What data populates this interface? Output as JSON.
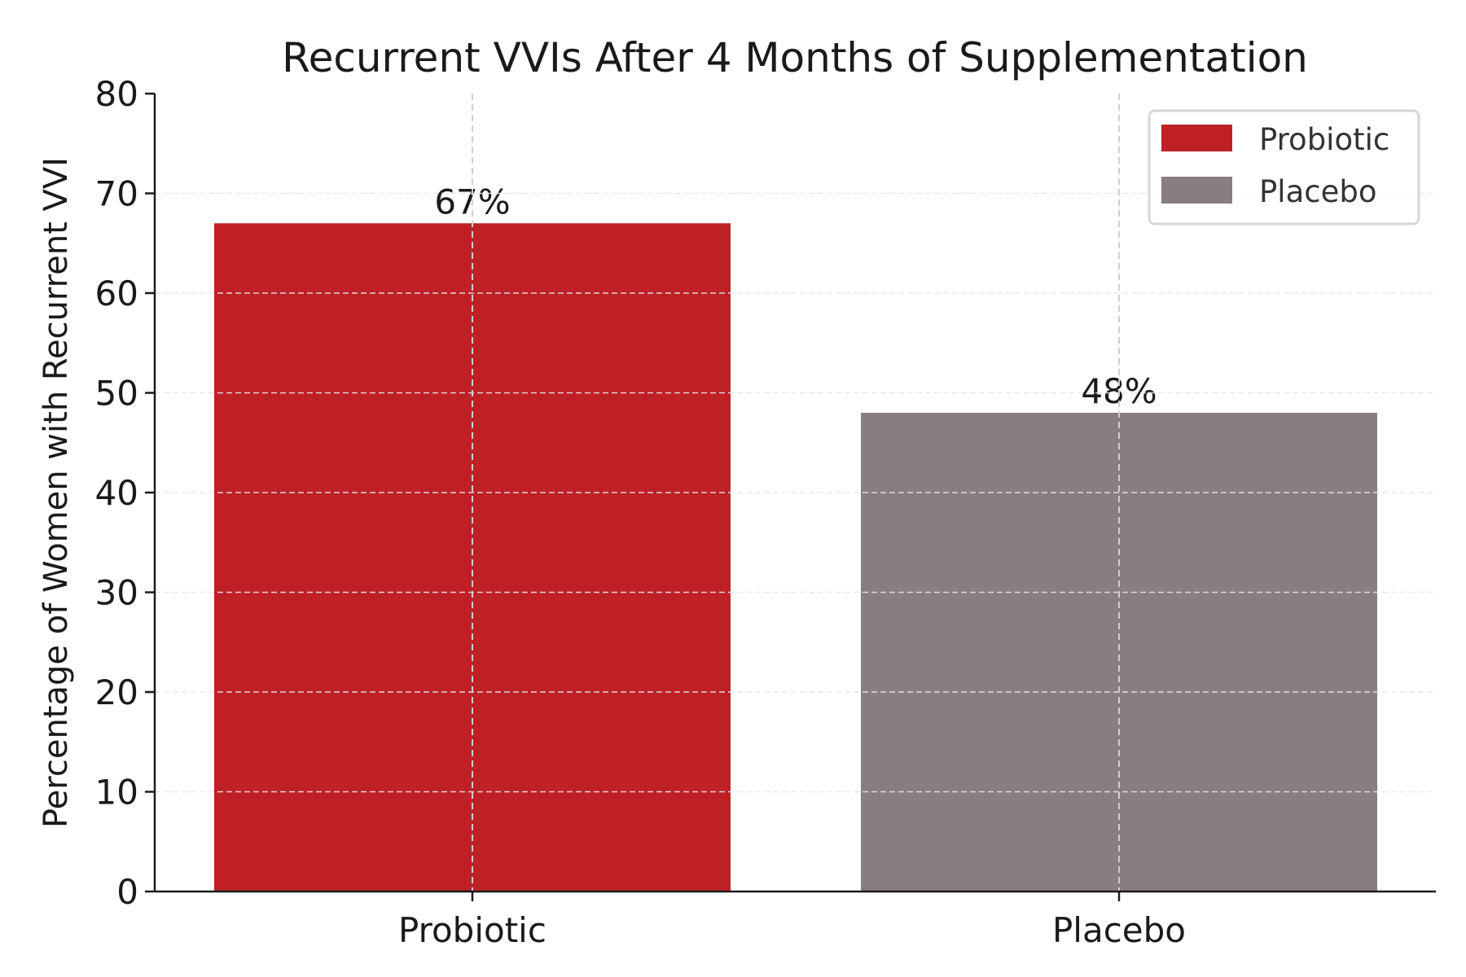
{
  "chart_data": {
    "type": "bar",
    "title": "Recurrent VVIs After 4 Months of Supplementation",
    "xlabel": "",
    "ylabel": "Percentage of Women with Recurrent VVI",
    "categories": [
      "Probiotic",
      "Placebo"
    ],
    "values": [
      67,
      48
    ],
    "data_labels": [
      "67%",
      "48%"
    ],
    "colors": [
      "#BE2026",
      "#897D80"
    ],
    "ylim": [
      0,
      80
    ],
    "yticks": [
      0,
      10,
      20,
      30,
      40,
      50,
      60,
      70,
      80
    ],
    "grid": true,
    "legend": {
      "placement": "top-right",
      "entries": [
        {
          "label": "Probiotic",
          "color": "#BE2026"
        },
        {
          "label": "Placebo",
          "color": "#897D80"
        }
      ]
    }
  }
}
